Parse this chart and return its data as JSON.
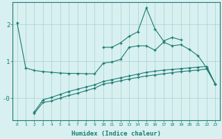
{
  "xlabel": "Humidex (Indice chaleur)",
  "x_values": [
    0,
    1,
    2,
    3,
    4,
    5,
    6,
    7,
    8,
    9,
    10,
    11,
    12,
    13,
    14,
    15,
    16,
    17,
    18,
    19,
    20,
    21,
    22,
    23
  ],
  "line1": [
    2.05,
    0.82,
    0.75,
    0.72,
    0.7,
    0.68,
    0.67,
    0.67,
    0.66,
    0.66,
    0.95,
    0.98,
    1.05,
    1.38,
    1.42,
    1.42,
    1.3,
    1.52,
    1.42,
    1.45,
    1.32,
    1.15,
    0.82,
    0.38
  ],
  "line2": [
    null,
    null,
    null,
    null,
    null,
    null,
    null,
    null,
    null,
    null,
    1.38,
    1.38,
    1.5,
    1.68,
    1.8,
    2.45,
    1.88,
    1.55,
    1.65,
    1.58,
    null,
    null,
    null,
    null
  ],
  "line3": [
    null,
    null,
    -0.38,
    -0.05,
    0.02,
    0.1,
    0.18,
    0.24,
    0.3,
    0.36,
    0.45,
    0.5,
    0.55,
    0.6,
    0.65,
    0.7,
    0.73,
    0.76,
    0.78,
    0.8,
    0.82,
    0.84,
    0.86,
    0.38
  ],
  "line4": [
    null,
    null,
    -0.42,
    -0.12,
    -0.08,
    0.0,
    0.07,
    0.13,
    0.2,
    0.27,
    0.38,
    0.42,
    0.47,
    0.52,
    0.56,
    0.6,
    0.63,
    0.66,
    0.69,
    0.72,
    0.74,
    0.76,
    0.79,
    0.38
  ],
  "color": "#1a7a6e",
  "bg_color": "#d8f0f0",
  "grid_color": "#a8d0d0",
  "ylim": [
    -0.6,
    2.6
  ],
  "yticks": [
    0.0,
    1.0,
    2.0
  ],
  "ytick_labels": [
    "-0",
    "1",
    "2"
  ]
}
